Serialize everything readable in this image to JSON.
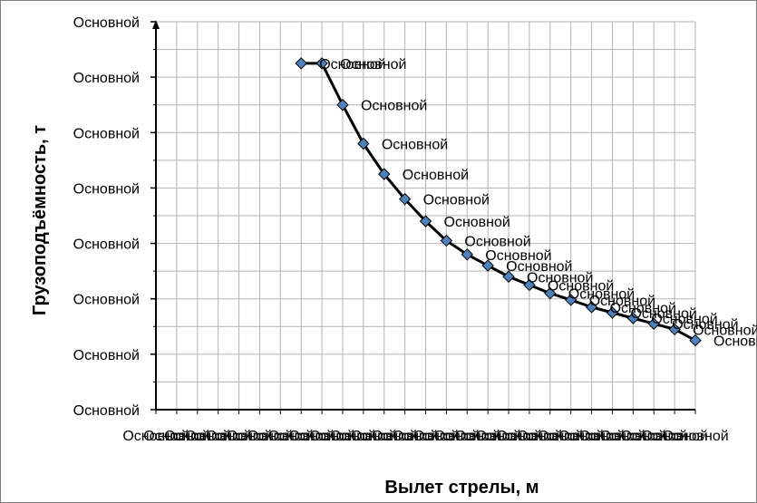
{
  "chart_data": {
    "type": "line",
    "title": "",
    "xlabel": "Вылет стрелы, м",
    "ylabel": "Грузоподъёмность, т",
    "x_tick_labels": [
      "Основной",
      "Основной",
      "Основной",
      "Основной",
      "Основной",
      "Основной",
      "Основной",
      "Основной",
      "Основной",
      "Основной",
      "Основной",
      "Основной",
      "Основной",
      "Основной",
      "Основной",
      "Основной",
      "Основной",
      "Основной",
      "Основной",
      "Основной",
      "Основной",
      "Основной",
      "Основной",
      "Основной",
      "Основной",
      "Основной",
      "Основной"
    ],
    "y_tick_labels": [
      "Основной",
      "Основной",
      "Основной",
      "Основной",
      "Основной",
      "Основной",
      "Основной",
      "Основной"
    ],
    "xlim": [
      0,
      26
    ],
    "ylim": [
      0,
      7
    ],
    "grid": true,
    "legend": "none",
    "series": [
      {
        "marker": "diamond",
        "color": "#4f81bd",
        "line_color": "#000000",
        "x": [
          7,
          8,
          9,
          10,
          11,
          12,
          13,
          14,
          15,
          16,
          17,
          18,
          19,
          20,
          21,
          22,
          23,
          24,
          25,
          26
        ],
        "y": [
          6.25,
          6.25,
          5.5,
          4.8,
          4.25,
          3.8,
          3.4,
          3.05,
          2.8,
          2.6,
          2.4,
          2.25,
          2.1,
          1.98,
          1.85,
          1.75,
          1.65,
          1.55,
          1.45,
          1.25
        ],
        "data_labels": [
          "Основной",
          "Основной",
          "Основной",
          "Основной",
          "Основной",
          "Основной",
          "Основной",
          "Основной",
          "Основной",
          "Основной",
          "Основной",
          "Основной",
          "Основной",
          "Основной",
          "Основной",
          "Основной",
          "Основной",
          "Основной",
          "Основной",
          "Основной"
        ]
      }
    ]
  }
}
